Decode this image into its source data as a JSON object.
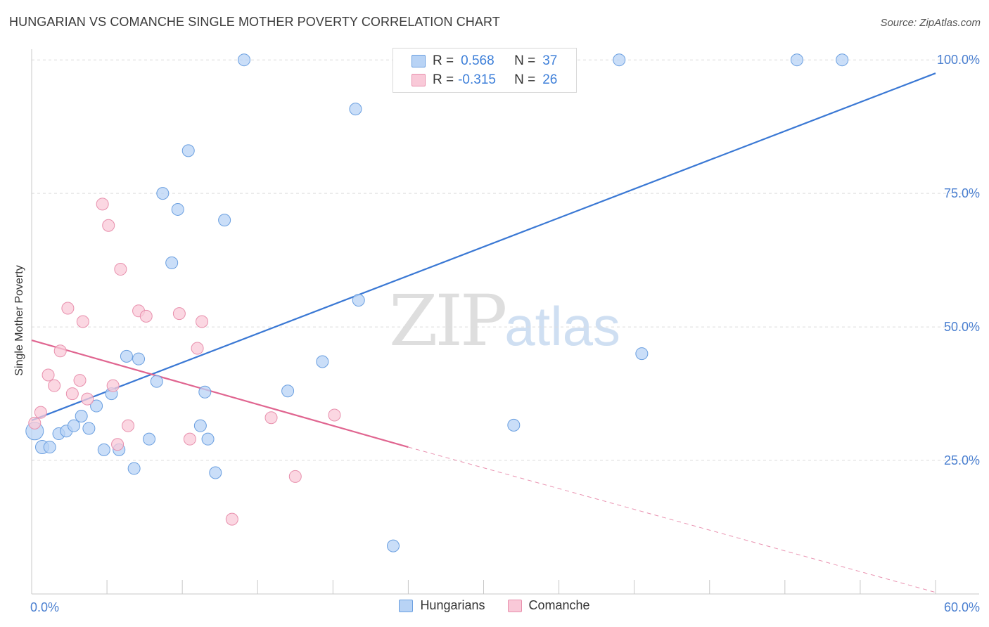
{
  "title": "HUNGARIAN VS COMANCHE SINGLE MOTHER POVERTY CORRELATION CHART",
  "source": "Source: ZipAtlas.com",
  "watermark": {
    "zip": "ZIP",
    "atlas": "atlas"
  },
  "legend": {
    "rows": [
      {
        "r_label": "R =",
        "r_value": "0.568",
        "n_label": "N =",
        "n_value": "37",
        "fill": "#b8d3f5",
        "stroke": "#6a9fe0"
      },
      {
        "r_label": "R =",
        "r_value": "-0.315",
        "n_label": "N =",
        "n_value": "26",
        "fill": "#f9c9d8",
        "stroke": "#e890ad"
      }
    ]
  },
  "chart_data": {
    "type": "scatter",
    "xlabel": "",
    "ylabel": "Single Mother Poverty",
    "xlim": [
      0,
      60
    ],
    "ylim": [
      0,
      102
    ],
    "x_tick_labels": [
      {
        "value": 0,
        "text": "0.0%"
      },
      {
        "value": 60,
        "text": "60.0%"
      }
    ],
    "y_tick_labels": [
      {
        "value": 25,
        "text": "25.0%"
      },
      {
        "value": 50,
        "text": "50.0%"
      },
      {
        "value": 75,
        "text": "75.0%"
      },
      {
        "value": 100,
        "text": "100.0%"
      }
    ],
    "grid": true,
    "legend_position": "bottom",
    "series": [
      {
        "name": "Hungarians",
        "color": "#6a9fe0",
        "fill": "#b8d3f5",
        "line_color": "#3a78d4",
        "trend": {
          "x0": 0,
          "y0": 32.5,
          "x1": 60,
          "y1": 97.5,
          "dashed_to": null
        },
        "points": [
          [
            0.2,
            30.5,
            22
          ],
          [
            0.7,
            27.5,
            16
          ],
          [
            1.2,
            27.5,
            14
          ],
          [
            1.8,
            30.0,
            14
          ],
          [
            2.3,
            30.5,
            14
          ],
          [
            2.8,
            31.5,
            14
          ],
          [
            3.3,
            33.3,
            14
          ],
          [
            3.8,
            31.0,
            14
          ],
          [
            4.3,
            35.2,
            14
          ],
          [
            4.8,
            27.0,
            14
          ],
          [
            5.3,
            37.5,
            14
          ],
          [
            5.8,
            27.0,
            14
          ],
          [
            6.3,
            44.5,
            14
          ],
          [
            6.8,
            23.5,
            14
          ],
          [
            7.1,
            44.0,
            14
          ],
          [
            7.8,
            29.0,
            14
          ],
          [
            8.3,
            39.8,
            14
          ],
          [
            8.7,
            75.0,
            14
          ],
          [
            9.3,
            62.0,
            14
          ],
          [
            9.7,
            72.0,
            14
          ],
          [
            10.4,
            83.0,
            14
          ],
          [
            11.2,
            31.5,
            14
          ],
          [
            11.5,
            37.8,
            14
          ],
          [
            11.7,
            29.0,
            14
          ],
          [
            12.2,
            22.7,
            14
          ],
          [
            12.8,
            70.0,
            14
          ],
          [
            14.1,
            100.0,
            14
          ],
          [
            17.0,
            38.0,
            14
          ],
          [
            19.3,
            43.5,
            14
          ],
          [
            21.5,
            90.8,
            14
          ],
          [
            21.7,
            55.0,
            14
          ],
          [
            24.0,
            9.0,
            14
          ],
          [
            32.0,
            31.6,
            14
          ],
          [
            39.0,
            100.0,
            14
          ],
          [
            40.5,
            45.0,
            14
          ],
          [
            50.8,
            100.0,
            14
          ],
          [
            53.8,
            100.0,
            14
          ]
        ]
      },
      {
        "name": "Comanche",
        "color": "#e890ad",
        "fill": "#f9c9d8",
        "line_color": "#e06590",
        "trend": {
          "x0": 0,
          "y0": 47.5,
          "x1": 25,
          "y1": 27.5,
          "dashed_to": {
            "x": 60,
            "y": 0.3
          }
        },
        "points": [
          [
            0.2,
            32.0,
            14
          ],
          [
            0.6,
            34.0,
            14
          ],
          [
            1.1,
            41.0,
            14
          ],
          [
            1.5,
            39.0,
            14
          ],
          [
            1.9,
            45.5,
            14
          ],
          [
            2.4,
            53.5,
            14
          ],
          [
            2.7,
            37.5,
            14
          ],
          [
            3.2,
            40.0,
            14
          ],
          [
            3.4,
            51.0,
            14
          ],
          [
            3.7,
            36.5,
            14
          ],
          [
            4.7,
            73.0,
            14
          ],
          [
            5.1,
            69.0,
            14
          ],
          [
            5.4,
            39.0,
            14
          ],
          [
            5.7,
            28.0,
            14
          ],
          [
            5.9,
            60.8,
            14
          ],
          [
            6.4,
            31.5,
            14
          ],
          [
            7.1,
            53.0,
            14
          ],
          [
            7.6,
            52.0,
            14
          ],
          [
            9.8,
            52.5,
            14
          ],
          [
            10.5,
            29.0,
            14
          ],
          [
            11.0,
            46.0,
            14
          ],
          [
            11.3,
            51.0,
            14
          ],
          [
            13.3,
            14.0,
            14
          ],
          [
            15.9,
            33.0,
            14
          ],
          [
            17.5,
            22.0,
            14
          ],
          [
            20.1,
            33.5,
            14
          ]
        ]
      }
    ]
  }
}
